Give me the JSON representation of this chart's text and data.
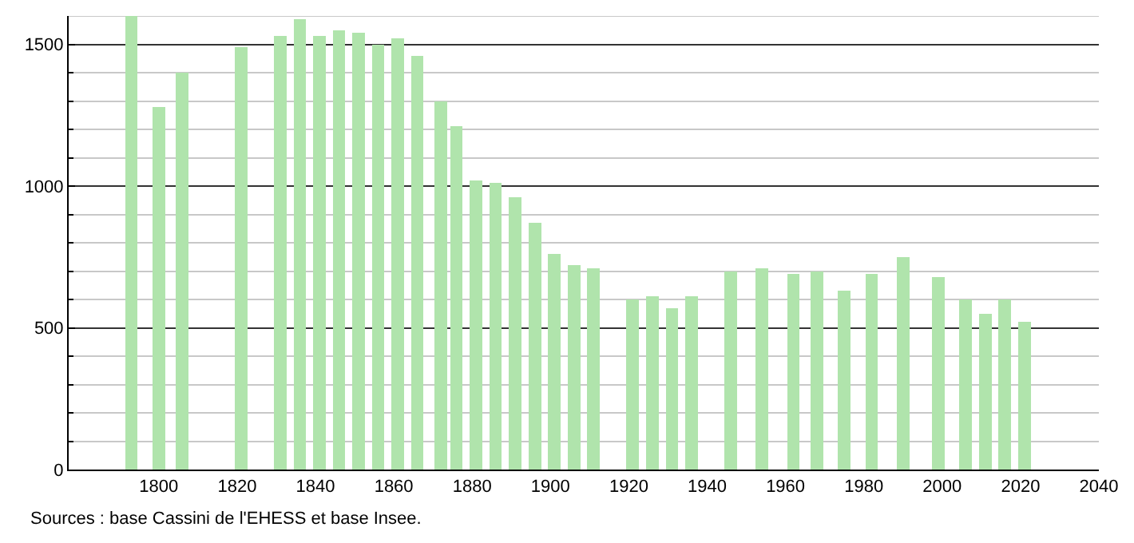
{
  "chart_data": {
    "type": "bar",
    "x": [
      1793,
      1800,
      1806,
      1821,
      1831,
      1836,
      1841,
      1846,
      1851,
      1856,
      1861,
      1866,
      1872,
      1876,
      1881,
      1886,
      1891,
      1896,
      1901,
      1906,
      1911,
      1921,
      1926,
      1931,
      1936,
      1946,
      1954,
      1962,
      1968,
      1975,
      1982,
      1990,
      1999,
      2006,
      2011,
      2016,
      2021
    ],
    "values": [
      1600,
      1280,
      1400,
      1490,
      1530,
      1590,
      1530,
      1550,
      1540,
      1500,
      1520,
      1460,
      1300,
      1210,
      1020,
      1010,
      960,
      870,
      760,
      720,
      710,
      600,
      610,
      570,
      610,
      700,
      710,
      690,
      700,
      630,
      690,
      750,
      680,
      600,
      550,
      600,
      520
    ],
    "color": "#b0e4ac",
    "xlim": [
      1777,
      2040
    ],
    "xticks": [
      1800,
      1820,
      1840,
      1860,
      1880,
      1900,
      1920,
      1940,
      1960,
      1980,
      2000,
      2020,
      2040
    ],
    "ylim": [
      0,
      1600
    ],
    "yticks": [
      0,
      {
        "value": 100,
        "label": null
      },
      {
        "value": 200,
        "label": null
      },
      {
        "value": 300,
        "label": null
      },
      {
        "value": 400,
        "label": null
      },
      500,
      {
        "value": 600,
        "label": null
      },
      {
        "value": 700,
        "label": null
      },
      {
        "value": 800,
        "label": null
      },
      {
        "value": 900,
        "label": null
      },
      1000,
      {
        "value": 1100,
        "label": null
      },
      {
        "value": 1200,
        "label": null
      },
      {
        "value": 1300,
        "label": null
      },
      {
        "value": 1400,
        "label": null
      },
      1500,
      {
        "value": 1600,
        "label": null
      }
    ],
    "grid": "y",
    "annotations": [
      "Sources : base Cassini de l'EHESS et base Insee."
    ]
  }
}
